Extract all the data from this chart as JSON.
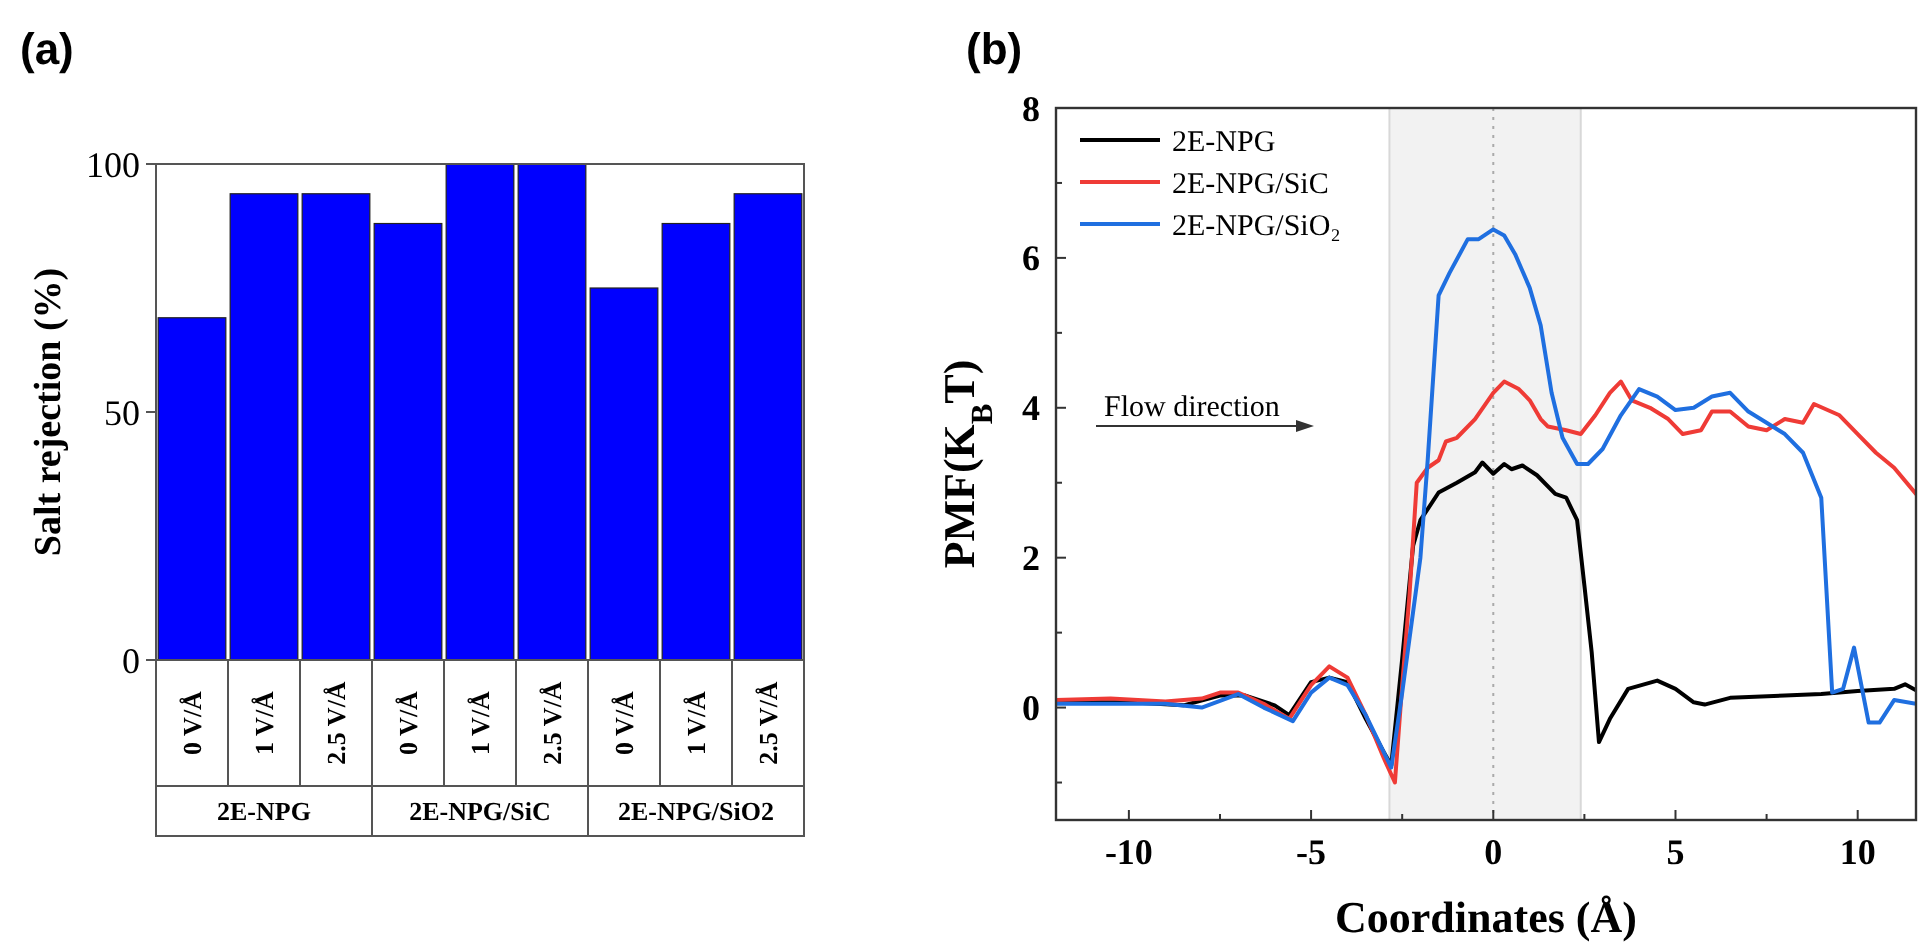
{
  "chart_data": [
    {
      "type": "bar",
      "title": "(a)",
      "ylabel": "Salt rejection (%)",
      "categories": [
        "0 V/Å",
        "1 V/Å",
        "2.5 V/Å",
        "0 V/Å",
        "1 V/Å",
        "2.5 V/Å",
        "0 V/Å",
        "1 V/Å",
        "2.5 V/Å"
      ],
      "values": [
        69,
        94,
        94,
        88,
        100,
        100,
        75,
        88,
        94
      ],
      "color": "#0000ff",
      "ylim": [
        0,
        100
      ],
      "yticks": [
        0,
        50,
        100
      ],
      "annotations": [
        "2E-NPG",
        "2E-NPG/SiC",
        "2E-NPG/SiO2"
      ]
    },
    {
      "type": "line",
      "title": "(b)",
      "xlabel": "Coordinates (Å)",
      "ylabel": "PMF(K$_{B}$T)",
      "xlim": [
        -12,
        11.6
      ],
      "ylim": [
        -1.5,
        8
      ],
      "xticks": [
        -10,
        {
          "value": -7.5,
          "label": null
        },
        -5,
        {
          "value": -2.5,
          "label": null
        },
        0,
        {
          "value": 2.5,
          "label": null
        },
        5,
        {
          "value": 7.5,
          "label": null
        },
        10
      ],
      "yticks": [
        {
          "value": -1,
          "label": null
        },
        0,
        {
          "value": 1,
          "label": null
        },
        2,
        {
          "value": 3,
          "label": null
        },
        4,
        {
          "value": 5,
          "label": null
        },
        6,
        {
          "value": 7,
          "label": null
        },
        8
      ],
      "legend": "top left",
      "annotations": [
        "Flow direction"
      ],
      "bands": [
        {
          "axis": "x",
          "from": -2.85,
          "to": 2.4,
          "color": "#f2f2f2"
        }
      ],
      "ref_lines": [
        {
          "axis": "x",
          "value": 0,
          "color": "#aaaaaa",
          "line_style": "dotted"
        }
      ],
      "series": [
        {
          "name": "2E-NPG",
          "color": "#000000",
          "x": [
            -12,
            -10,
            -8.5,
            -7.5,
            -6.8,
            -6,
            -5.6,
            -5,
            -4.5,
            -4,
            -3.5,
            -3,
            -2.8,
            -2.5,
            -2.2,
            -2,
            -1.5,
            -1,
            -0.5,
            -0.3,
            0,
            0.3,
            0.5,
            0.8,
            1.2,
            1.7,
            2,
            2.3,
            2.5,
            2.7,
            2.9,
            3.2,
            3.7,
            4.5,
            5,
            5.5,
            5.8,
            6.5,
            8,
            9,
            10,
            11,
            11.3,
            11.6
          ],
          "values": [
            0.07,
            0.07,
            0.03,
            0.16,
            0.16,
            0.03,
            -0.1,
            0.34,
            0.4,
            0.34,
            -0.15,
            -0.6,
            -0.77,
            0.65,
            2.16,
            2.5,
            2.87,
            3.0,
            3.14,
            3.27,
            3.12,
            3.25,
            3.18,
            3.23,
            3.1,
            2.85,
            2.8,
            2.5,
            1.63,
            0.74,
            -0.46,
            -0.15,
            0.25,
            0.36,
            0.25,
            0.07,
            0.04,
            0.13,
            0.16,
            0.18,
            0.22,
            0.25,
            0.31,
            0.23
          ]
        },
        {
          "name": "2E-NPG/SiC",
          "color": "#ef3b36",
          "x": [
            -12,
            -10.5,
            -9,
            -8,
            -7.5,
            -7,
            -6.3,
            -5.6,
            -5,
            -4.5,
            -4,
            -3.5,
            -3,
            -2.7,
            -2.5,
            -2.3,
            -2.1,
            -1.8,
            -1.5,
            -1.3,
            -1,
            -0.5,
            0,
            0.3,
            0.7,
            1,
            1.3,
            1.5,
            2,
            2.4,
            2.8,
            3.2,
            3.5,
            3.8,
            4.3,
            4.8,
            5.2,
            5.7,
            6,
            6.5,
            7,
            7.5,
            8,
            8.5,
            8.8,
            9.5,
            10,
            10.5,
            11,
            11.6
          ],
          "values": [
            0.1,
            0.12,
            0.08,
            0.12,
            0.2,
            0.2,
            0.05,
            -0.15,
            0.3,
            0.55,
            0.4,
            -0.1,
            -0.68,
            -1.0,
            0.3,
            1.5,
            3.0,
            3.2,
            3.3,
            3.55,
            3.6,
            3.85,
            4.2,
            4.35,
            4.25,
            4.1,
            3.85,
            3.75,
            3.7,
            3.65,
            3.9,
            4.2,
            4.35,
            4.1,
            4.0,
            3.85,
            3.65,
            3.7,
            3.95,
            3.95,
            3.75,
            3.7,
            3.85,
            3.8,
            4.05,
            3.9,
            3.65,
            3.4,
            3.2,
            2.85
          ]
        },
        {
          "name": "2E-NPG/SiO₂",
          "color": "#1f6fe0",
          "x": [
            -12,
            -10.5,
            -9,
            -8,
            -7,
            -6.3,
            -5.5,
            -5,
            -4.5,
            -4,
            -3.5,
            -2.8,
            -2.5,
            -2,
            -1.8,
            -1.5,
            -1.2,
            -0.7,
            -0.4,
            0,
            0.3,
            0.6,
            1,
            1.3,
            1.6,
            1.9,
            2.3,
            2.6,
            3,
            3.5,
            4,
            4.5,
            5,
            5.5,
            6,
            6.5,
            7,
            7.5,
            8,
            8.5,
            9,
            9.3,
            9.6,
            9.9,
            10.3,
            10.6,
            11,
            11.6
          ],
          "values": [
            0.05,
            0.05,
            0.05,
            0.0,
            0.18,
            0.0,
            -0.18,
            0.2,
            0.4,
            0.3,
            -0.1,
            -0.8,
            0.2,
            2.0,
            3.3,
            5.5,
            5.8,
            6.25,
            6.25,
            6.38,
            6.3,
            6.05,
            5.6,
            5.1,
            4.2,
            3.6,
            3.25,
            3.25,
            3.45,
            3.9,
            4.25,
            4.15,
            3.97,
            4.0,
            4.15,
            4.2,
            3.95,
            3.8,
            3.65,
            3.4,
            2.8,
            0.2,
            0.25,
            0.8,
            -0.2,
            -0.2,
            0.1,
            0.05
          ]
        }
      ]
    }
  ]
}
